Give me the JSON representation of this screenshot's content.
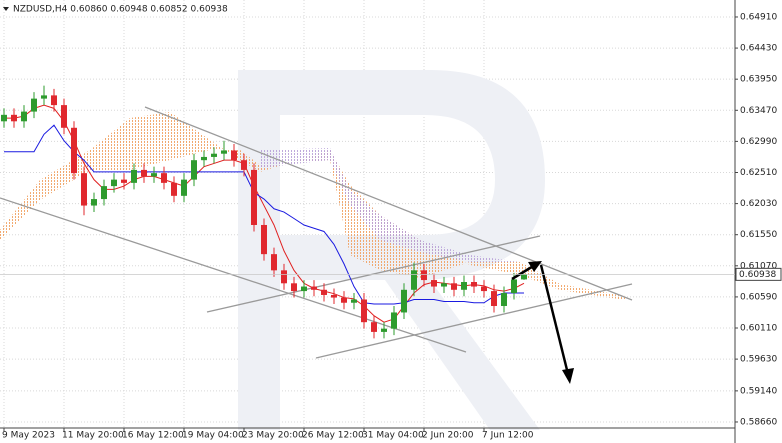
{
  "chart_data": {
    "type": "candlestick",
    "title": "NZDUSD,H4  0.60860 0.60948 0.60852 0.60938",
    "categories": [
      "9 May 2023",
      null,
      null,
      null,
      null,
      null,
      "11 May 20:00",
      null,
      null,
      null,
      null,
      null,
      "16 May 12:00",
      null,
      null,
      null,
      null,
      null,
      "19 May 04:00",
      null,
      null,
      null,
      null,
      null,
      "23 May 20:00",
      null,
      null,
      null,
      null,
      null,
      "26 May 12:00",
      null,
      null,
      null,
      null,
      null,
      "31 May 04:00",
      null,
      null,
      null,
      null,
      null,
      "2 Jun 20:00",
      null,
      null,
      null,
      null,
      null,
      "7 Jun 12:00",
      null,
      null,
      null,
      null
    ],
    "open": [
      0.633,
      0.634,
      0.633,
      0.6345,
      0.6365,
      0.637,
      0.6355,
      0.632,
      0.625,
      0.62,
      0.621,
      0.623,
      0.624,
      0.6235,
      0.6255,
      0.6245,
      0.625,
      0.6235,
      0.6215,
      0.624,
      0.627,
      0.6275,
      0.628,
      0.6285,
      0.627,
      0.6255,
      0.617,
      0.6125,
      0.61,
      0.608,
      0.6068,
      0.6075,
      0.607,
      0.6062,
      0.6058,
      0.605,
      0.6055,
      0.602,
      0.6005,
      0.601,
      0.6035,
      0.607,
      0.61,
      0.6085,
      0.6075,
      0.608,
      0.607,
      0.6082,
      0.6075,
      0.6068,
      0.6045,
      0.6065,
      0.6086
    ],
    "high": [
      0.635,
      0.635,
      0.6355,
      0.6375,
      0.6385,
      0.638,
      0.6365,
      0.633,
      0.626,
      0.622,
      0.624,
      0.625,
      0.625,
      0.6265,
      0.6265,
      0.626,
      0.626,
      0.6245,
      0.625,
      0.628,
      0.6285,
      0.629,
      0.63,
      0.6295,
      0.628,
      0.6265,
      0.618,
      0.6135,
      0.611,
      0.609,
      0.6085,
      0.6085,
      0.608,
      0.6072,
      0.6068,
      0.6065,
      0.6065,
      0.603,
      0.602,
      0.6045,
      0.608,
      0.6112,
      0.611,
      0.6095,
      0.609,
      0.609,
      0.6092,
      0.6092,
      0.6085,
      0.6078,
      0.6075,
      0.6096,
      0.60948
    ],
    "low": [
      0.632,
      0.632,
      0.632,
      0.6335,
      0.6355,
      0.6345,
      0.631,
      0.624,
      0.6185,
      0.619,
      0.62,
      0.622,
      0.6225,
      0.6225,
      0.6235,
      0.6235,
      0.6225,
      0.6205,
      0.6205,
      0.623,
      0.626,
      0.6265,
      0.627,
      0.626,
      0.6245,
      0.616,
      0.6115,
      0.609,
      0.607,
      0.6058,
      0.6058,
      0.606,
      0.6052,
      0.6048,
      0.604,
      0.604,
      0.601,
      0.5995,
      0.5995,
      0.6,
      0.6025,
      0.606,
      0.6075,
      0.6065,
      0.6065,
      0.606,
      0.606,
      0.6065,
      0.6058,
      0.6035,
      0.6035,
      0.6055,
      0.60852
    ],
    "close": [
      0.634,
      0.633,
      0.6345,
      0.6365,
      0.637,
      0.6355,
      0.632,
      0.625,
      0.62,
      0.621,
      0.623,
      0.624,
      0.6235,
      0.6255,
      0.6245,
      0.625,
      0.6235,
      0.6215,
      0.624,
      0.627,
      0.6275,
      0.628,
      0.6285,
      0.627,
      0.6255,
      0.617,
      0.6125,
      0.61,
      0.608,
      0.6068,
      0.6075,
      0.607,
      0.6062,
      0.6058,
      0.605,
      0.6055,
      0.602,
      0.6005,
      0.601,
      0.6035,
      0.607,
      0.61,
      0.6085,
      0.6075,
      0.608,
      0.607,
      0.6082,
      0.6075,
      0.6068,
      0.6045,
      0.6065,
      0.6086,
      0.60938
    ],
    "up_color": "#2e9b2e",
    "down_color": "#e0282e",
    "lines": [
      {
        "color": "#e02020",
        "values": [
          0.6335,
          0.6335,
          0.6338,
          0.635,
          0.6355,
          0.635,
          0.633,
          0.63,
          0.6265,
          0.624,
          0.6225,
          0.6225,
          0.623,
          0.624,
          0.6245,
          0.6245,
          0.624,
          0.6235,
          0.623,
          0.6245,
          0.626,
          0.6265,
          0.627,
          0.627,
          0.6265,
          0.623,
          0.62,
          0.617,
          0.613,
          0.61,
          0.608,
          0.6072,
          0.6068,
          0.6064,
          0.6058,
          0.6056,
          0.6045,
          0.603,
          0.602,
          0.6025,
          0.6045,
          0.6065,
          0.6078,
          0.6082,
          0.608,
          0.6078,
          0.6076,
          0.6078,
          0.6076,
          0.607,
          0.6068,
          0.6072,
          0.608
        ]
      },
      {
        "color": "#1a1ae0",
        "values": [
          0.6283,
          0.6283,
          0.6283,
          0.6283,
          0.631,
          0.6324,
          0.63,
          0.6283,
          0.627,
          0.6252,
          0.6252,
          0.6252,
          0.6252,
          0.6252,
          0.6252,
          0.6252,
          0.6252,
          0.6252,
          0.6252,
          0.6252,
          0.6252,
          0.6252,
          0.6252,
          0.6252,
          0.6252,
          0.622,
          0.621,
          0.6195,
          0.619,
          0.618,
          0.617,
          0.6165,
          0.616,
          0.614,
          0.611,
          0.6075,
          0.605,
          0.6048,
          0.6048,
          0.6048,
          0.605,
          0.6055,
          0.6055,
          0.6055,
          0.6052,
          0.6052,
          0.6052,
          0.605,
          0.605,
          0.606,
          0.6065,
          0.6065,
          0.6065
        ]
      }
    ],
    "ylim": [
      0.58567,
      0.65172
    ],
    "yticks": [
      {
        "value": 0.5866,
        "label": "0.58660"
      },
      {
        "value": 0.5914,
        "label": "0.59140"
      },
      {
        "value": 0.5963,
        "label": "0.59630"
      },
      {
        "value": 0.6011,
        "label": "0.60110"
      },
      {
        "value": 0.6059,
        "label": "0.60590"
      },
      {
        "value": 0.6107,
        "label": "0.61070"
      },
      {
        "value": 0.6155,
        "label": "0.61550"
      },
      {
        "value": 0.6203,
        "label": "0.62030"
      },
      {
        "value": 0.6251,
        "label": "0.62510"
      },
      {
        "value": 0.6299,
        "label": "0.62990"
      },
      {
        "value": 0.6347,
        "label": "0.63470"
      },
      {
        "value": 0.6395,
        "label": "0.63950"
      },
      {
        "value": 0.6443,
        "label": "0.64430"
      },
      {
        "value": 0.6491,
        "label": "0.64910"
      }
    ],
    "grid": true
  }
}
